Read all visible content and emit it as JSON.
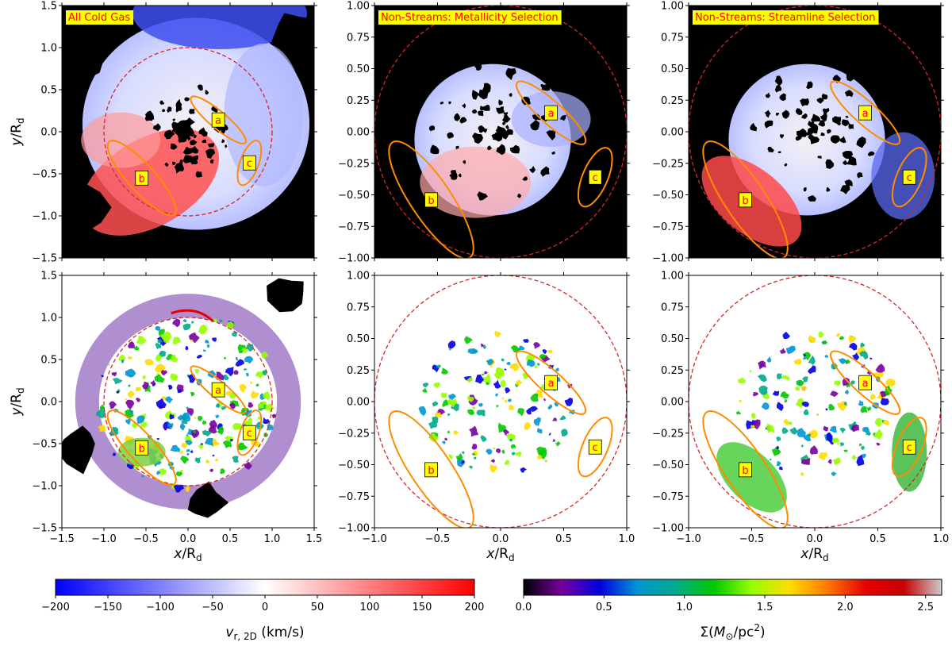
{
  "chart_data": {
    "type": "heatmap",
    "description_rows": [
      "Top row: radial velocity maps (v_r,2D), diverging blue-white-red colormap",
      "Bottom row: gas surface density maps (Sigma), spectral colormap"
    ],
    "panels": [
      {
        "id": "top-left",
        "row": 0,
        "col": 0,
        "title": "All Cold Gas",
        "quantity": "velocity",
        "xlim": [
          -1.5,
          1.5
        ],
        "ylim": [
          -1.5,
          1.5
        ],
        "xticks": [],
        "yticks": [
          -1.5,
          -1.0,
          -0.5,
          0.0,
          0.5,
          1.0,
          1.5
        ],
        "ytick_labels": [
          "−1.5",
          "−1.0",
          "−0.5",
          "0.0",
          "0.5",
          "1.0",
          "1.5"
        ],
        "ylabel": "y/R_d",
        "circle_radius": 1.0,
        "regions": [
          {
            "label": "a",
            "cx": 0.36,
            "cy": 0.14,
            "rx": 0.42,
            "ry": 0.1,
            "angle_deg": -40
          },
          {
            "label": "b",
            "cx": -0.55,
            "cy": -0.55,
            "rx": 0.58,
            "ry": 0.16,
            "angle_deg": -48
          },
          {
            "label": "c",
            "cx": 0.73,
            "cy": -0.37,
            "rx": 0.28,
            "ry": 0.11,
            "angle_deg": 70
          }
        ]
      },
      {
        "id": "top-middle",
        "row": 0,
        "col": 1,
        "title": "Non-Streams: Metallicity Selection",
        "quantity": "velocity",
        "xlim": [
          -1.0,
          1.0
        ],
        "ylim": [
          -1.0,
          1.0
        ],
        "xticks": [],
        "yticks": [
          -1.0,
          -0.75,
          -0.5,
          -0.25,
          0.0,
          0.25,
          0.5,
          0.75,
          1.0
        ],
        "ytick_labels": [
          "−1.00",
          "−0.75",
          "−0.50",
          "−0.25",
          "0.00",
          "0.25",
          "0.50",
          "0.75",
          "1.00"
        ],
        "ylabel": "",
        "circle_radius": 1.0,
        "regions": [
          {
            "label": "a",
            "cx": 0.4,
            "cy": 0.15,
            "rx": 0.36,
            "ry": 0.09,
            "angle_deg": -42
          },
          {
            "label": "b",
            "cx": -0.55,
            "cy": -0.54,
            "rx": 0.55,
            "ry": 0.16,
            "angle_deg": -56
          },
          {
            "label": "c",
            "cx": 0.75,
            "cy": -0.36,
            "rx": 0.25,
            "ry": 0.1,
            "angle_deg": 67
          }
        ]
      },
      {
        "id": "top-right",
        "row": 0,
        "col": 2,
        "title": "Non-Streams: Streamline Selection",
        "quantity": "velocity",
        "xlim": [
          -1.0,
          1.0
        ],
        "ylim": [
          -1.0,
          1.0
        ],
        "xticks": [],
        "yticks": [
          -1.0,
          -0.75,
          -0.5,
          -0.25,
          0.0,
          0.25,
          0.5,
          0.75,
          1.0
        ],
        "ytick_labels": [
          "−1.00",
          "−0.75",
          "−0.50",
          "−0.25",
          "0.00",
          "0.25",
          "0.50",
          "0.75",
          "1.00"
        ],
        "ylabel": "",
        "circle_radius": 1.0,
        "regions": [
          {
            "label": "a",
            "cx": 0.4,
            "cy": 0.15,
            "rx": 0.36,
            "ry": 0.09,
            "angle_deg": -42
          },
          {
            "label": "b",
            "cx": -0.55,
            "cy": -0.54,
            "rx": 0.55,
            "ry": 0.16,
            "angle_deg": -56
          },
          {
            "label": "c",
            "cx": 0.75,
            "cy": -0.36,
            "rx": 0.25,
            "ry": 0.1,
            "angle_deg": 67
          }
        ]
      },
      {
        "id": "bottom-left",
        "row": 1,
        "col": 0,
        "title": "",
        "quantity": "density",
        "xlim": [
          -1.5,
          1.5
        ],
        "ylim": [
          -1.5,
          1.5
        ],
        "xticks": [
          -1.5,
          -1.0,
          -0.5,
          0.0,
          0.5,
          1.0,
          1.5
        ],
        "xtick_labels": [
          "−1.5",
          "−1.0",
          "−0.5",
          "0.0",
          "0.5",
          "1.0",
          "1.5"
        ],
        "yticks": [
          -1.5,
          -1.0,
          -0.5,
          0.0,
          0.5,
          1.0,
          1.5
        ],
        "ytick_labels": [
          "−1.5",
          "−1.0",
          "−0.5",
          "0.0",
          "0.5",
          "1.0",
          "1.5"
        ],
        "xlabel": "x/R_d",
        "ylabel": "y/R_d",
        "circle_radius": 1.0,
        "regions": [
          {
            "label": "a",
            "cx": 0.36,
            "cy": 0.14,
            "rx": 0.42,
            "ry": 0.1,
            "angle_deg": -40
          },
          {
            "label": "b",
            "cx": -0.55,
            "cy": -0.55,
            "rx": 0.58,
            "ry": 0.16,
            "angle_deg": -48
          },
          {
            "label": "c",
            "cx": 0.73,
            "cy": -0.37,
            "rx": 0.28,
            "ry": 0.11,
            "angle_deg": 70
          }
        ]
      },
      {
        "id": "bottom-middle",
        "row": 1,
        "col": 1,
        "title": "",
        "quantity": "density",
        "xlim": [
          -1.0,
          1.0
        ],
        "ylim": [
          -1.0,
          1.0
        ],
        "xticks": [
          -1.0,
          -0.5,
          0.0,
          0.5,
          1.0
        ],
        "xtick_labels": [
          "−1.0",
          "−0.5",
          "0.0",
          "0.5",
          "1.0"
        ],
        "yticks": [
          -1.0,
          -0.75,
          -0.5,
          -0.25,
          0.0,
          0.25,
          0.5,
          0.75,
          1.0
        ],
        "ytick_labels": [
          "−1.00",
          "−0.75",
          "−0.50",
          "−0.25",
          "0.00",
          "0.25",
          "0.50",
          "0.75",
          "1.00"
        ],
        "xlabel": "x/R_d",
        "ylabel": "",
        "circle_radius": 1.0,
        "regions": [
          {
            "label": "a",
            "cx": 0.4,
            "cy": 0.15,
            "rx": 0.36,
            "ry": 0.09,
            "angle_deg": -42
          },
          {
            "label": "b",
            "cx": -0.55,
            "cy": -0.54,
            "rx": 0.55,
            "ry": 0.16,
            "angle_deg": -56
          },
          {
            "label": "c",
            "cx": 0.75,
            "cy": -0.36,
            "rx": 0.25,
            "ry": 0.1,
            "angle_deg": 67
          }
        ]
      },
      {
        "id": "bottom-right",
        "row": 1,
        "col": 2,
        "title": "",
        "quantity": "density",
        "xlim": [
          -1.0,
          1.0
        ],
        "ylim": [
          -1.0,
          1.0
        ],
        "xticks": [
          -1.0,
          -0.5,
          0.0,
          0.5,
          1.0
        ],
        "xtick_labels": [
          "−1.0",
          "−0.5",
          "0.0",
          "0.5",
          "1.0"
        ],
        "yticks": [
          -1.0,
          -0.75,
          -0.5,
          -0.25,
          0.0,
          0.25,
          0.5,
          0.75,
          1.0
        ],
        "ytick_labels": [
          "−1.00",
          "−0.75",
          "−0.50",
          "−0.25",
          "0.00",
          "0.25",
          "0.50",
          "0.75",
          "1.00"
        ],
        "xlabel": "x/R_d",
        "ylabel": "",
        "circle_radius": 1.0,
        "regions": [
          {
            "label": "a",
            "cx": 0.4,
            "cy": 0.15,
            "rx": 0.36,
            "ry": 0.09,
            "angle_deg": -42
          },
          {
            "label": "b",
            "cx": -0.55,
            "cy": -0.54,
            "rx": 0.55,
            "ry": 0.16,
            "angle_deg": -56
          },
          {
            "label": "c",
            "cx": 0.75,
            "cy": -0.36,
            "rx": 0.25,
            "ry": 0.1,
            "angle_deg": 67
          }
        ]
      }
    ],
    "colorbars": [
      {
        "id": "velocity-colorbar",
        "label": "v_r,2D (km/s)",
        "range": [
          -200,
          200
        ],
        "ticks": [
          -200,
          -150,
          -100,
          -50,
          0,
          50,
          100,
          150,
          200
        ],
        "tick_labels": [
          "−200",
          "−150",
          "−100",
          "−50",
          "0",
          "50",
          "100",
          "150",
          "200"
        ],
        "colormap": "bwr",
        "stops": [
          "#0000ff",
          "#ffffff",
          "#ff0000"
        ]
      },
      {
        "id": "density-colorbar",
        "label": "Σ(M_⊙/pc²)",
        "range": [
          0.0,
          2.6
        ],
        "ticks": [
          0.0,
          0.5,
          1.0,
          1.5,
          2.0,
          2.5
        ],
        "tick_labels": [
          "0.0",
          "0.5",
          "1.0",
          "1.5",
          "2.0",
          "2.5"
        ],
        "colormap": "nipy_spectral",
        "stops": [
          "#000000",
          "#7800a0",
          "#0000e0",
          "#0096d2",
          "#00aa8c",
          "#00c800",
          "#96ff00",
          "#ffdc00",
          "#ff7800",
          "#e60000",
          "#c80000",
          "#cccccc"
        ]
      }
    ],
    "axis_label_text": {
      "x_var": "x",
      "y_var": "y",
      "sub": "d",
      "over": "/R",
      "vel_main": "v",
      "vel_sub": "r, 2D",
      "vel_unit": " (km/s)",
      "den_prefix": "Σ(",
      "den_m": "M",
      "den_sub": "⊙",
      "den_mid": "/pc",
      "den_sup": "2",
      "den_suffix": ")"
    }
  },
  "colors": {
    "circle": "#d62728",
    "region": "#ff8c00",
    "label_box": "#ffff00",
    "label_text": "#ff0000",
    "masked_velocity": "#000000",
    "masked_density": "#ffffff"
  }
}
